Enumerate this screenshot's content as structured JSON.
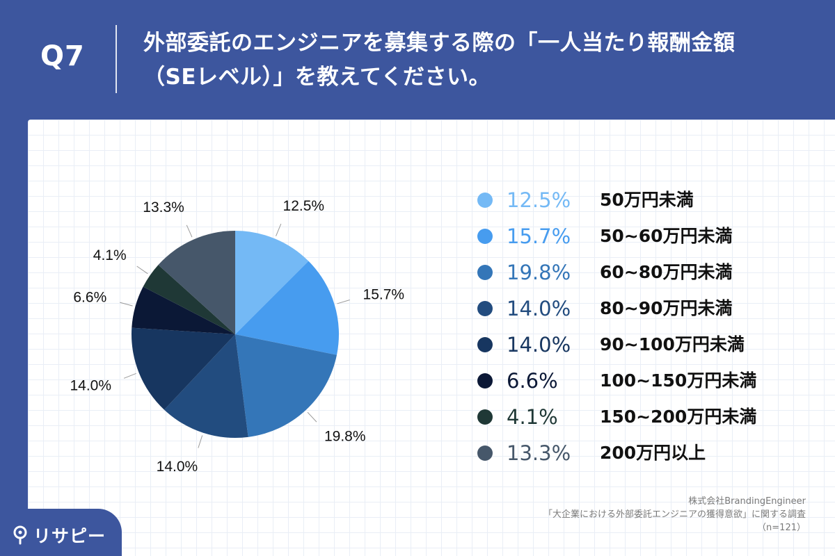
{
  "header": {
    "question": "Q7",
    "title_line1": "外部委託のエンジニアを募集する際の「一人当たり報酬金額",
    "title_line2": "（SEレベル）」を教えてください。"
  },
  "chart_data": {
    "type": "pie",
    "title": "外部委託のエンジニアを募集する際の「一人当たり報酬金額（SEレベル）」を教えてください。",
    "unit": "%",
    "labels": [
      "50万円未満",
      "50~60万円未満",
      "60~80万円未満",
      "80~90万円未満",
      "90~100万円未満",
      "100~150万円未満",
      "150~200万円未満",
      "200万円以上"
    ],
    "values": [
      12.5,
      15.7,
      19.8,
      14.0,
      14.0,
      6.6,
      4.1,
      13.3
    ],
    "value_labels": [
      "12.5%",
      "15.7%",
      "19.8%",
      "14.0%",
      "14.0%",
      "6.6%",
      "4.1%",
      "13.3%"
    ],
    "colors": [
      "#74b9f5",
      "#479cef",
      "#3476b8",
      "#224c7f",
      "#173660",
      "#0b1836",
      "#1f3836",
      "#46576a"
    ],
    "start": "12 o'clock, clockwise",
    "legend": "right"
  },
  "source": {
    "company": "株式会社BrandingEngineer",
    "survey": "「大企業における外部委託エンジニアの獲得意欲」に関する調査",
    "sample": "（n=121）"
  },
  "logo": {
    "text": "リサピー"
  }
}
